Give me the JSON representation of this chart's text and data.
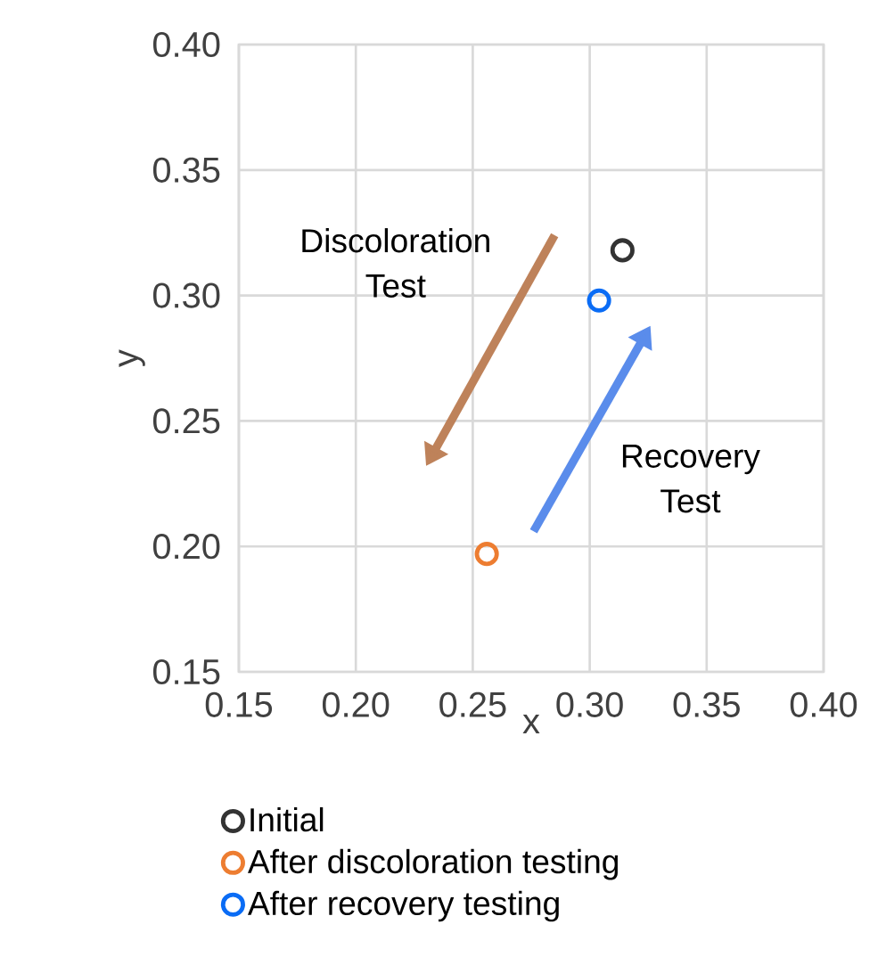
{
  "chart_data": {
    "type": "scatter",
    "xlabel": "x",
    "ylabel": "y",
    "xlim": [
      0.15,
      0.4
    ],
    "ylim": [
      0.15,
      0.4
    ],
    "xticks": [
      0.15,
      {
        "value": 0.2,
        "label": "0.20"
      },
      0.25,
      {
        "value": 0.3,
        "label": "0.30"
      },
      0.35,
      {
        "value": 0.4,
        "label": "0.40"
      }
    ],
    "yticks": [
      0.15,
      {
        "value": 0.2,
        "label": "0.20"
      },
      0.25,
      {
        "value": 0.3,
        "label": "0.30"
      },
      0.35,
      {
        "value": 0.4,
        "label": "0.40"
      }
    ],
    "grid": true,
    "legend": "bottom",
    "marker": "circle",
    "series": [
      {
        "name": "Initial",
        "color": "#333333",
        "x": [
          0.314
        ],
        "values": [
          0.318
        ]
      },
      {
        "name": "After discoloration testing",
        "color": "#ed7d31",
        "x": [
          0.256
        ],
        "values": [
          0.197
        ]
      },
      {
        "name": "After recovery testing",
        "color": "#0a6cf5",
        "x": [
          0.304
        ],
        "values": [
          0.298
        ]
      }
    ],
    "annotations": [
      "Discoloration Test",
      "Recovery Test"
    ]
  }
}
